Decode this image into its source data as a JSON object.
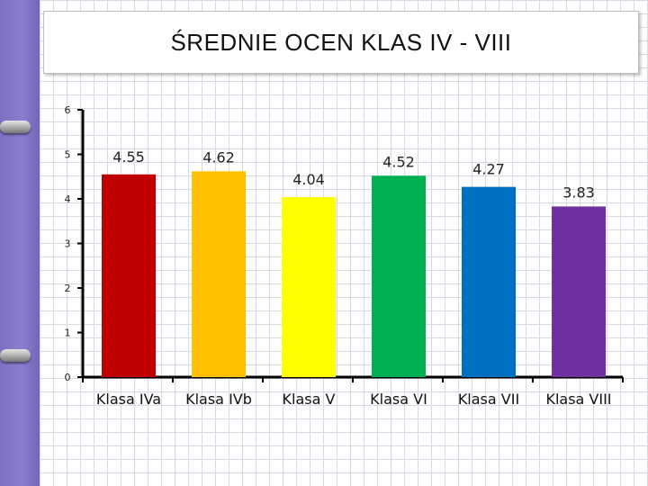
{
  "chart_data": {
    "type": "bar",
    "title": "ŚREDNIE OCEN KLAS IV - VIII",
    "categories": [
      "Klasa IVa",
      "Klasa IVb",
      "Klasa V",
      "Klasa VI",
      "Klasa VII",
      "Klasa VIII"
    ],
    "values": [
      4.55,
      4.62,
      4.04,
      4.52,
      4.27,
      3.83
    ],
    "data_labels": [
      "4.55",
      "4.62",
      "4.04",
      "4.52",
      "4.27",
      "3.83"
    ],
    "colors": [
      "#c00000",
      "#ffc000",
      "#ffff00",
      "#00b050",
      "#0070c0",
      "#7030a0"
    ],
    "yticks": [
      "0",
      "1",
      "2",
      "3",
      "4",
      "5",
      "6"
    ],
    "ylim": [
      0,
      6
    ],
    "grid": false,
    "legend": "none"
  }
}
